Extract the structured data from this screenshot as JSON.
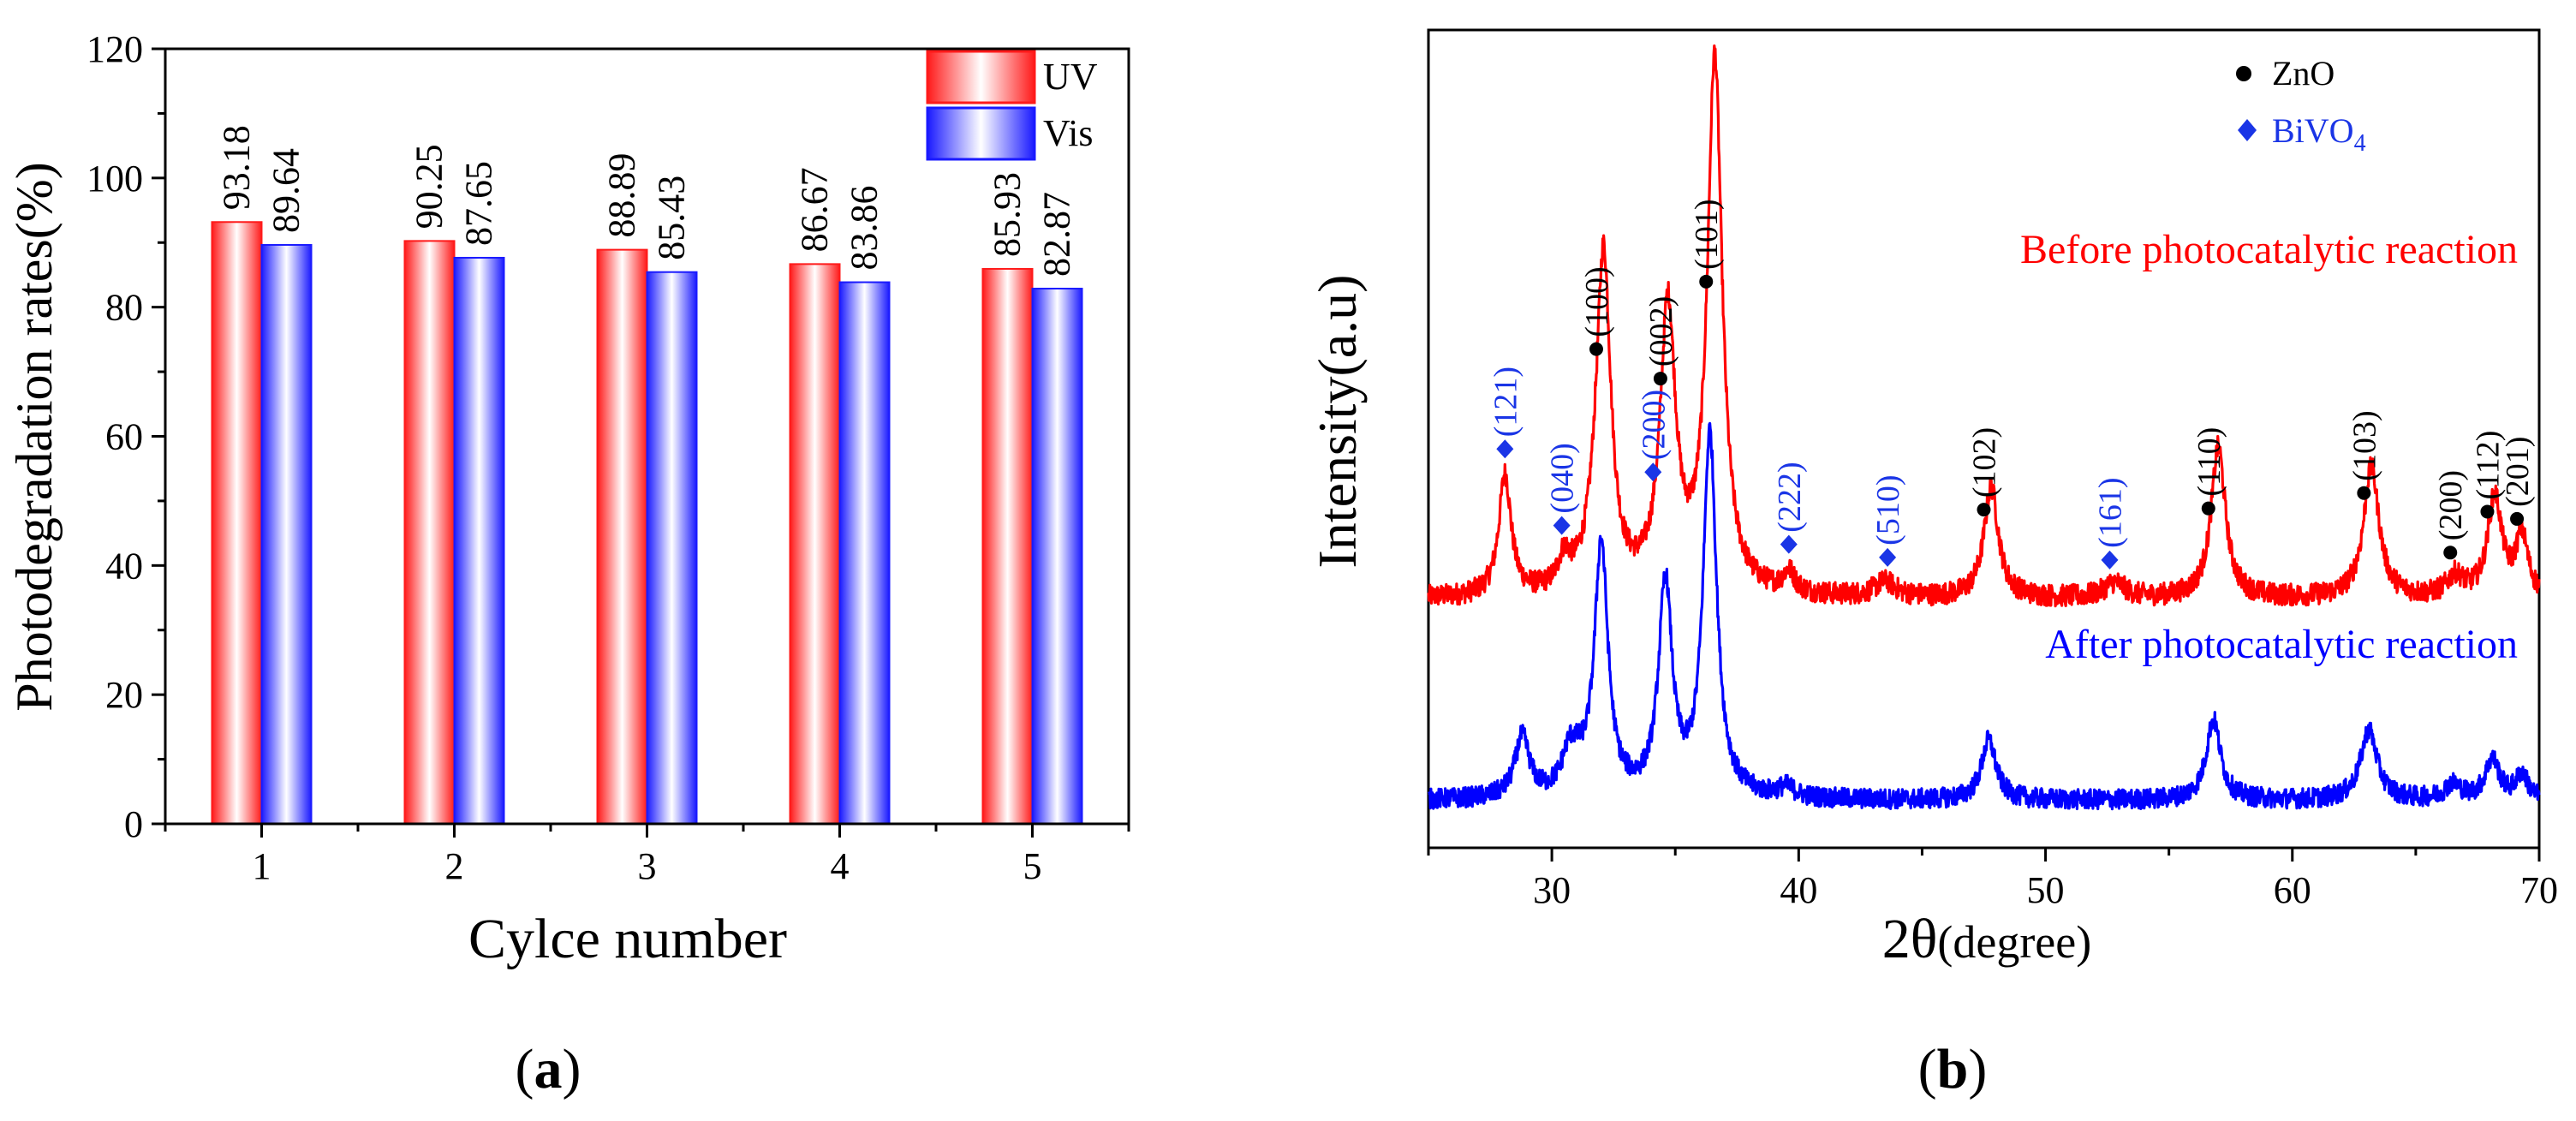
{
  "chart_data": [
    {
      "panel_label": "a",
      "type": "bar",
      "title": "",
      "xlabel": "Cylce number",
      "ylabel": "Photodegradation rates(%)",
      "categories": [
        "1",
        "2",
        "3",
        "4",
        "5"
      ],
      "series": [
        {
          "name": "UV",
          "values": [
            93.18,
            90.25,
            88.89,
            86.67,
            85.93
          ],
          "value_labels": [
            "93.18",
            "90.25",
            "88.89",
            "86.67",
            "85.93"
          ]
        },
        {
          "name": "Vis",
          "values": [
            89.64,
            87.65,
            85.43,
            83.86,
            82.87
          ],
          "value_labels": [
            "89.64",
            "87.65",
            "85.43",
            "83.86",
            "82.87"
          ]
        }
      ],
      "ylim": [
        0,
        120
      ],
      "yticks": [
        0,
        20,
        40,
        60,
        80,
        100,
        120
      ],
      "ytick_labels": [
        "0",
        "20",
        "40",
        "60",
        "80",
        "100",
        "120"
      ],
      "legend_position": "top-right",
      "grid": false
    },
    {
      "panel_label": "b",
      "type": "line",
      "title": "",
      "xlabel": "2θ",
      "xlabel_unit": "(degree)",
      "ylabel": "Intensity(a.u)",
      "xlim": [
        25,
        70
      ],
      "xticks": [
        30,
        40,
        50,
        60,
        70
      ],
      "xtick_labels": [
        "30",
        "40",
        "50",
        "60",
        "70"
      ],
      "legend": [
        {
          "marker": "circle",
          "label": "ZnO"
        },
        {
          "marker": "diamond",
          "label": "BiVO",
          "subscript": "4"
        }
      ],
      "series": [
        {
          "name": "Before photocatalytic reaction",
          "baseline": 20,
          "noise": 1.1,
          "peaks": [
            {
              "x": 28.1,
              "h": 12,
              "w": 0.3
            },
            {
              "x": 30.5,
              "h": 3,
              "w": 0.3
            },
            {
              "x": 31.8,
              "h": 3,
              "w": 0.5
            },
            {
              "x": 32.1,
              "h": 32,
              "w": 0.35
            },
            {
              "x": 34.7,
              "h": 28,
              "w": 0.38
            },
            {
              "x": 36.6,
              "h": 53,
              "w": 0.36
            },
            {
              "x": 39.6,
              "h": 2,
              "w": 0.3
            },
            {
              "x": 43.5,
              "h": 1.5,
              "w": 0.5
            },
            {
              "x": 47.8,
              "h": 11,
              "w": 0.35
            },
            {
              "x": 52.8,
              "h": 1.5,
              "w": 0.5
            },
            {
              "x": 57.0,
              "h": 15,
              "w": 0.35
            },
            {
              "x": 63.2,
              "h": 13,
              "w": 0.38
            },
            {
              "x": 66.6,
              "h": 2,
              "w": 0.4
            },
            {
              "x": 68.2,
              "h": 10,
              "w": 0.35
            },
            {
              "x": 69.3,
              "h": 6,
              "w": 0.3
            }
          ]
        },
        {
          "name": "After photocatalytic reaction",
          "baseline": 0,
          "noise": 1.0,
          "peaks": [
            {
              "x": 28.8,
              "h": 6,
              "w": 0.35
            },
            {
              "x": 30.7,
              "h": 3,
              "w": 0.35
            },
            {
              "x": 31.0,
              "h": 2,
              "w": 0.5
            },
            {
              "x": 32.0,
              "h": 25,
              "w": 0.33
            },
            {
              "x": 34.6,
              "h": 21,
              "w": 0.33
            },
            {
              "x": 36.4,
              "h": 36,
              "w": 0.33
            },
            {
              "x": 39.5,
              "h": 1,
              "w": 0.4
            },
            {
              "x": 47.7,
              "h": 6,
              "w": 0.35
            },
            {
              "x": 56.8,
              "h": 8,
              "w": 0.35
            },
            {
              "x": 63.1,
              "h": 7,
              "w": 0.4
            },
            {
              "x": 66.5,
              "h": 1.5,
              "w": 0.4
            },
            {
              "x": 68.1,
              "h": 4,
              "w": 0.35
            },
            {
              "x": 69.3,
              "h": 2.5,
              "w": 0.3
            }
          ]
        }
      ],
      "zno_peaks": [
        {
          "x": 31.8,
          "hkl": "(100)"
        },
        {
          "x": 34.4,
          "hkl": "(002)"
        },
        {
          "x": 36.25,
          "hkl": "(101)"
        },
        {
          "x": 47.5,
          "hkl": "(102)"
        },
        {
          "x": 56.6,
          "hkl": "(110)"
        },
        {
          "x": 62.9,
          "hkl": "(103)"
        },
        {
          "x": 66.4,
          "hkl": "(200)"
        },
        {
          "x": 67.9,
          "hkl": "(112)"
        },
        {
          "x": 69.1,
          "hkl": "(201)"
        }
      ],
      "bivo4_peaks": [
        {
          "x": 28.1,
          "hkl": "(121)"
        },
        {
          "x": 30.4,
          "hkl": "(040)"
        },
        {
          "x": 34.1,
          "hkl": "(200)"
        },
        {
          "x": 39.6,
          "hkl": "(222)"
        },
        {
          "x": 43.6,
          "hkl": "(510)"
        },
        {
          "x": 52.6,
          "hkl": "(161)"
        }
      ]
    }
  ],
  "panel_labels": [
    "(a)",
    "(b)"
  ],
  "colors": {
    "uv": "#ff1a1a",
    "vis": "#1a1aff",
    "before_curve": "#ff0000",
    "after_curve": "#0000ff",
    "bivo4_label": "#1a35e6",
    "zno_label": "#000000",
    "axis": "#000000"
  }
}
